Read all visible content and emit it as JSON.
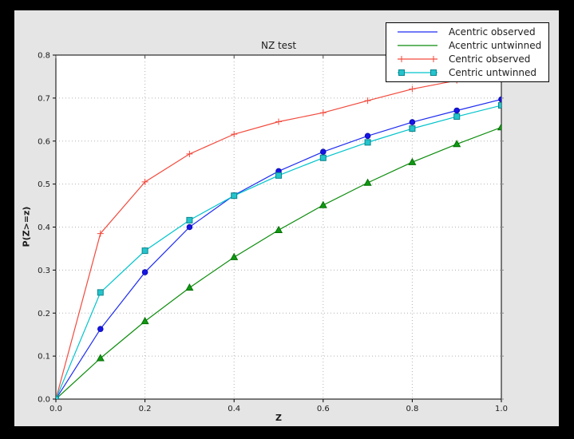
{
  "figure": {
    "outer_background": "#000000",
    "background": "#e5e5e5",
    "plot_background": "#ffffff",
    "grid_color": "#b3b3b3",
    "spine_color": "#000000",
    "top_tick_color": "#444444",
    "right_tick_color": "#8a8a8a",
    "text_color": "#1c1c1c",
    "legend_background": "#ffffff",
    "legend_border": "#000000"
  },
  "chart_data": {
    "type": "line",
    "title": "NZ test",
    "xlabel": "Z",
    "ylabel": "P(Z>=z)",
    "xlim": [
      0.0,
      1.0
    ],
    "ylim": [
      0.0,
      0.8
    ],
    "grid": true,
    "grid_style": "dotted",
    "legend_position": "upper right",
    "xticks": [
      0.0,
      0.2,
      0.4,
      0.6,
      0.8,
      1.0
    ],
    "xtick_labels": [
      "0.0",
      "0.2",
      "0.4",
      "0.6",
      "0.8",
      "1.0"
    ],
    "yticks": [
      0.0,
      0.1,
      0.2,
      0.3,
      0.4,
      0.5,
      0.6,
      0.7,
      0.8
    ],
    "ytick_labels": [
      "0.0",
      "0.1",
      "0.2",
      "0.3",
      "0.4",
      "0.5",
      "0.6",
      "0.7",
      "0.8"
    ],
    "x": [
      0.0,
      0.1,
      0.2,
      0.3,
      0.4,
      0.5,
      0.6,
      0.7,
      0.8,
      0.9,
      1.0
    ],
    "series": [
      {
        "id": "acentric-observed",
        "name": "Acentric observed",
        "color": "#1e2cf0",
        "marker": "circle",
        "marker_fill": "#1515e6",
        "marker_edge": "#0f0fb4",
        "legend_markers": false,
        "values": [
          0.0,
          0.163,
          0.295,
          0.4,
          0.474,
          0.53,
          0.575,
          0.612,
          0.644,
          0.671,
          0.697
        ]
      },
      {
        "id": "acentric-untwinned",
        "name": "Acentric untwinned",
        "color": "#0b8c0b",
        "marker": "triangle",
        "marker_fill": "#0f9a12",
        "marker_edge": "#067006",
        "legend_markers": false,
        "values": [
          0.0,
          0.095,
          0.181,
          0.259,
          0.33,
          0.393,
          0.451,
          0.503,
          0.551,
          0.593,
          0.632
        ]
      },
      {
        "id": "centric-observed",
        "name": "Centric observed",
        "color": "#f24a3d",
        "marker": "plus",
        "marker_fill": "#f24a3d",
        "marker_edge": "#f24a3d",
        "legend_markers": true,
        "values": [
          0.0,
          0.385,
          0.505,
          0.57,
          0.616,
          0.645,
          0.666,
          0.694,
          0.721,
          0.741,
          0.757
        ]
      },
      {
        "id": "centric-untwinned",
        "name": "Centric untwinned",
        "color": "#00c4cc",
        "marker": "square",
        "marker_fill": "#25c4cc",
        "marker_edge": "#0b858d",
        "legend_markers": true,
        "values": [
          0.0,
          0.248,
          0.345,
          0.416,
          0.473,
          0.52,
          0.561,
          0.597,
          0.629,
          0.657,
          0.683
        ]
      }
    ]
  }
}
